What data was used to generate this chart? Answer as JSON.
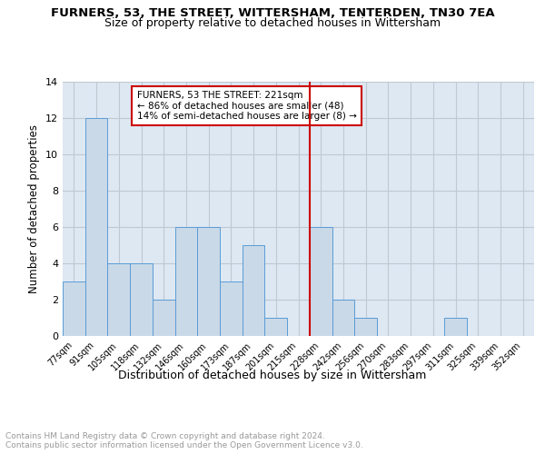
{
  "title": "FURNERS, 53, THE STREET, WITTERSHAM, TENTERDEN, TN30 7EA",
  "subtitle": "Size of property relative to detached houses in Wittersham",
  "xlabel": "Distribution of detached houses by size in Wittersham",
  "ylabel": "Number of detached properties",
  "bin_labels": [
    "77sqm",
    "91sqm",
    "105sqm",
    "118sqm",
    "132sqm",
    "146sqm",
    "160sqm",
    "173sqm",
    "187sqm",
    "201sqm",
    "215sqm",
    "228sqm",
    "242sqm",
    "256sqm",
    "270sqm",
    "283sqm",
    "297sqm",
    "311sqm",
    "325sqm",
    "339sqm",
    "352sqm"
  ],
  "bar_heights": [
    3,
    12,
    4,
    4,
    2,
    6,
    6,
    3,
    5,
    1,
    0,
    6,
    2,
    1,
    0,
    0,
    0,
    1,
    0,
    0,
    0
  ],
  "bar_color": "#c9d9e8",
  "bar_edge_color": "#5b9bd5",
  "grid_color": "#c0c8d0",
  "background_color": "#dde8f3",
  "property_line_color": "#cc0000",
  "annotation_text": "FURNERS, 53 THE STREET: 221sqm\n← 86% of detached houses are smaller (48)\n14% of semi-detached houses are larger (8) →",
  "annotation_box_color": "white",
  "annotation_box_edge": "#cc0000",
  "ylim": [
    0,
    14
  ],
  "yticks": [
    0,
    2,
    4,
    6,
    8,
    10,
    12,
    14
  ],
  "footer_text": "Contains HM Land Registry data © Crown copyright and database right 2024.\nContains public sector information licensed under the Open Government Licence v3.0.",
  "title_fontsize": 9.5,
  "subtitle_fontsize": 9,
  "xlabel_fontsize": 9,
  "ylabel_fontsize": 8.5,
  "annotation_fontsize": 7.5,
  "footer_fontsize": 6.5,
  "tick_fontsize": 7
}
